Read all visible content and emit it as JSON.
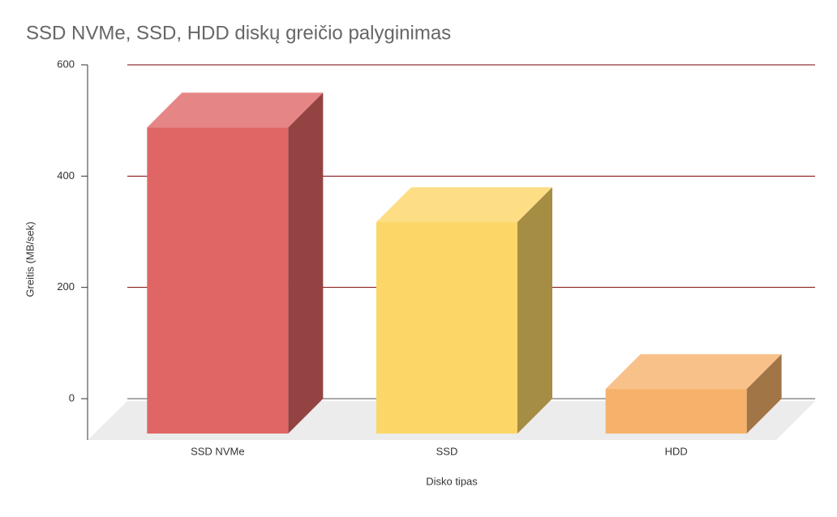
{
  "chart_data": {
    "type": "bar3d",
    "title": "SSD NVMe, SSD, HDD diskų greičio palyginimas",
    "x_label": "Disko tipas",
    "y_label": "Greitis (MB/sek)",
    "categories": [
      "SSD NVMe",
      "SSD",
      "HDD"
    ],
    "values": [
      550,
      380,
      80
    ],
    "colors": [
      "#e06666",
      "#fcd667",
      "#f6b26b"
    ],
    "ylim": [
      0,
      600
    ],
    "yticks": [
      0,
      200,
      400,
      600
    ],
    "grid": true
  }
}
